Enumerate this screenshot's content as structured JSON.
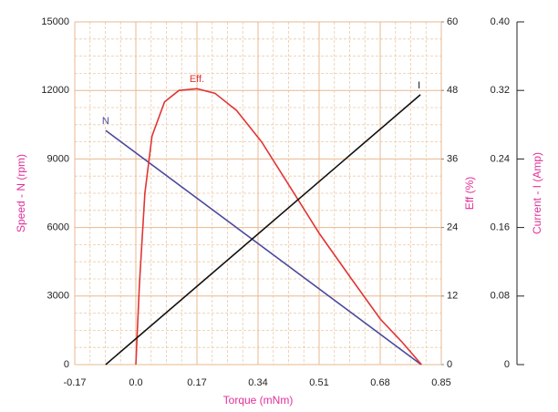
{
  "chart_data": {
    "type": "line",
    "x_label": "Torque (mNm)",
    "y_label": "Speed - N (rpm)",
    "y2_label": "Eff (%)",
    "y3_label": "Current - I (Amp)",
    "xlim": [
      -0.17,
      0.85
    ],
    "xticks": [
      -0.17,
      {
        "value": 0,
        "label": "0.0"
      },
      0.17,
      0.34,
      0.51,
      0.68,
      0.85
    ],
    "ylim": [
      0,
      15000
    ],
    "yticks": [
      0,
      3000,
      6000,
      9000,
      12000,
      15000
    ],
    "y2lim": [
      0,
      60
    ],
    "y2ticks": [
      0,
      12,
      24,
      36,
      48,
      60
    ],
    "y3lim": [
      0,
      0.4
    ],
    "y3ticks": [
      0,
      0.08,
      0.16,
      0.24,
      0.32,
      {
        "value": 0.4,
        "label": "0.40"
      }
    ],
    "grid": true,
    "series": [
      {
        "name": "N",
        "color": "#4a4a9e",
        "axis": "y",
        "x": [
          -0.084,
          0.794
        ],
        "values": [
          10250,
          0
        ]
      },
      {
        "name": "Eff.",
        "color": "#e03535",
        "axis": "y2",
        "x": [
          0,
          0.01,
          0.025,
          0.045,
          0.08,
          0.12,
          0.17,
          0.22,
          0.28,
          0.35,
          0.43,
          0.51,
          0.6,
          0.68,
          0.74,
          0.795
        ],
        "values": [
          0,
          14,
          30,
          40,
          46,
          48,
          48.3,
          47.5,
          44.5,
          39,
          31,
          23,
          15,
          8,
          4,
          0
        ]
      },
      {
        "name": "I",
        "color": "#111111",
        "axis": "y3",
        "x": [
          -0.084,
          0.792
        ],
        "values": [
          0,
          0.315
        ]
      }
    ]
  }
}
